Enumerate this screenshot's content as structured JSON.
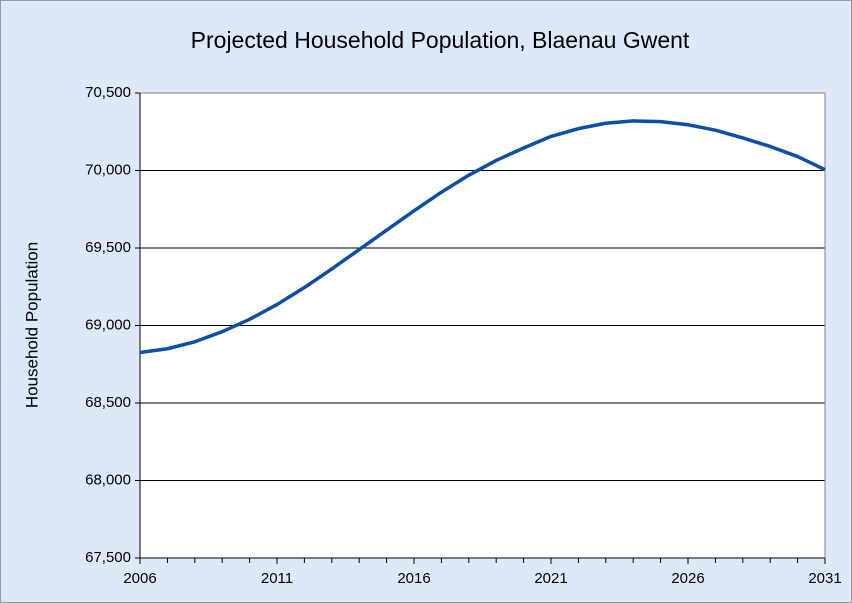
{
  "chart_data": {
    "type": "line",
    "title": "Projected Household Population, Blaenau Gwent",
    "y_label": "Household Population",
    "x": [
      2006,
      2007,
      2008,
      2009,
      2010,
      2011,
      2012,
      2013,
      2014,
      2015,
      2016,
      2017,
      2018,
      2019,
      2020,
      2021,
      2022,
      2023,
      2024,
      2025,
      2026,
      2027,
      2028,
      2029,
      2030,
      2031
    ],
    "series": [
      {
        "name": "Household Population",
        "color": "#0d4ea6",
        "values": [
          68826,
          68850,
          68895,
          68960,
          69040,
          69135,
          69245,
          69365,
          69490,
          69615,
          69740,
          69860,
          69970,
          70065,
          70145,
          70220,
          70270,
          70305,
          70320,
          70315,
          70295,
          70260,
          70210,
          70155,
          70090,
          70005
        ]
      }
    ],
    "xlim": [
      2006,
      2031
    ],
    "xticks": [
      2006,
      2011,
      2016,
      2021,
      2026,
      2031
    ],
    "ylim": [
      67500,
      70500
    ],
    "yticks": [
      {
        "value": 67500,
        "label": "67,500"
      },
      {
        "value": 68000,
        "label": "68,000"
      },
      {
        "value": 68500,
        "label": "68,500"
      },
      {
        "value": 69000,
        "label": "69,000"
      },
      {
        "value": 69500,
        "label": "69,500"
      },
      {
        "value": 70000,
        "label": "70,000"
      },
      {
        "value": 70500,
        "label": "70,500"
      }
    ],
    "grid": true
  }
}
